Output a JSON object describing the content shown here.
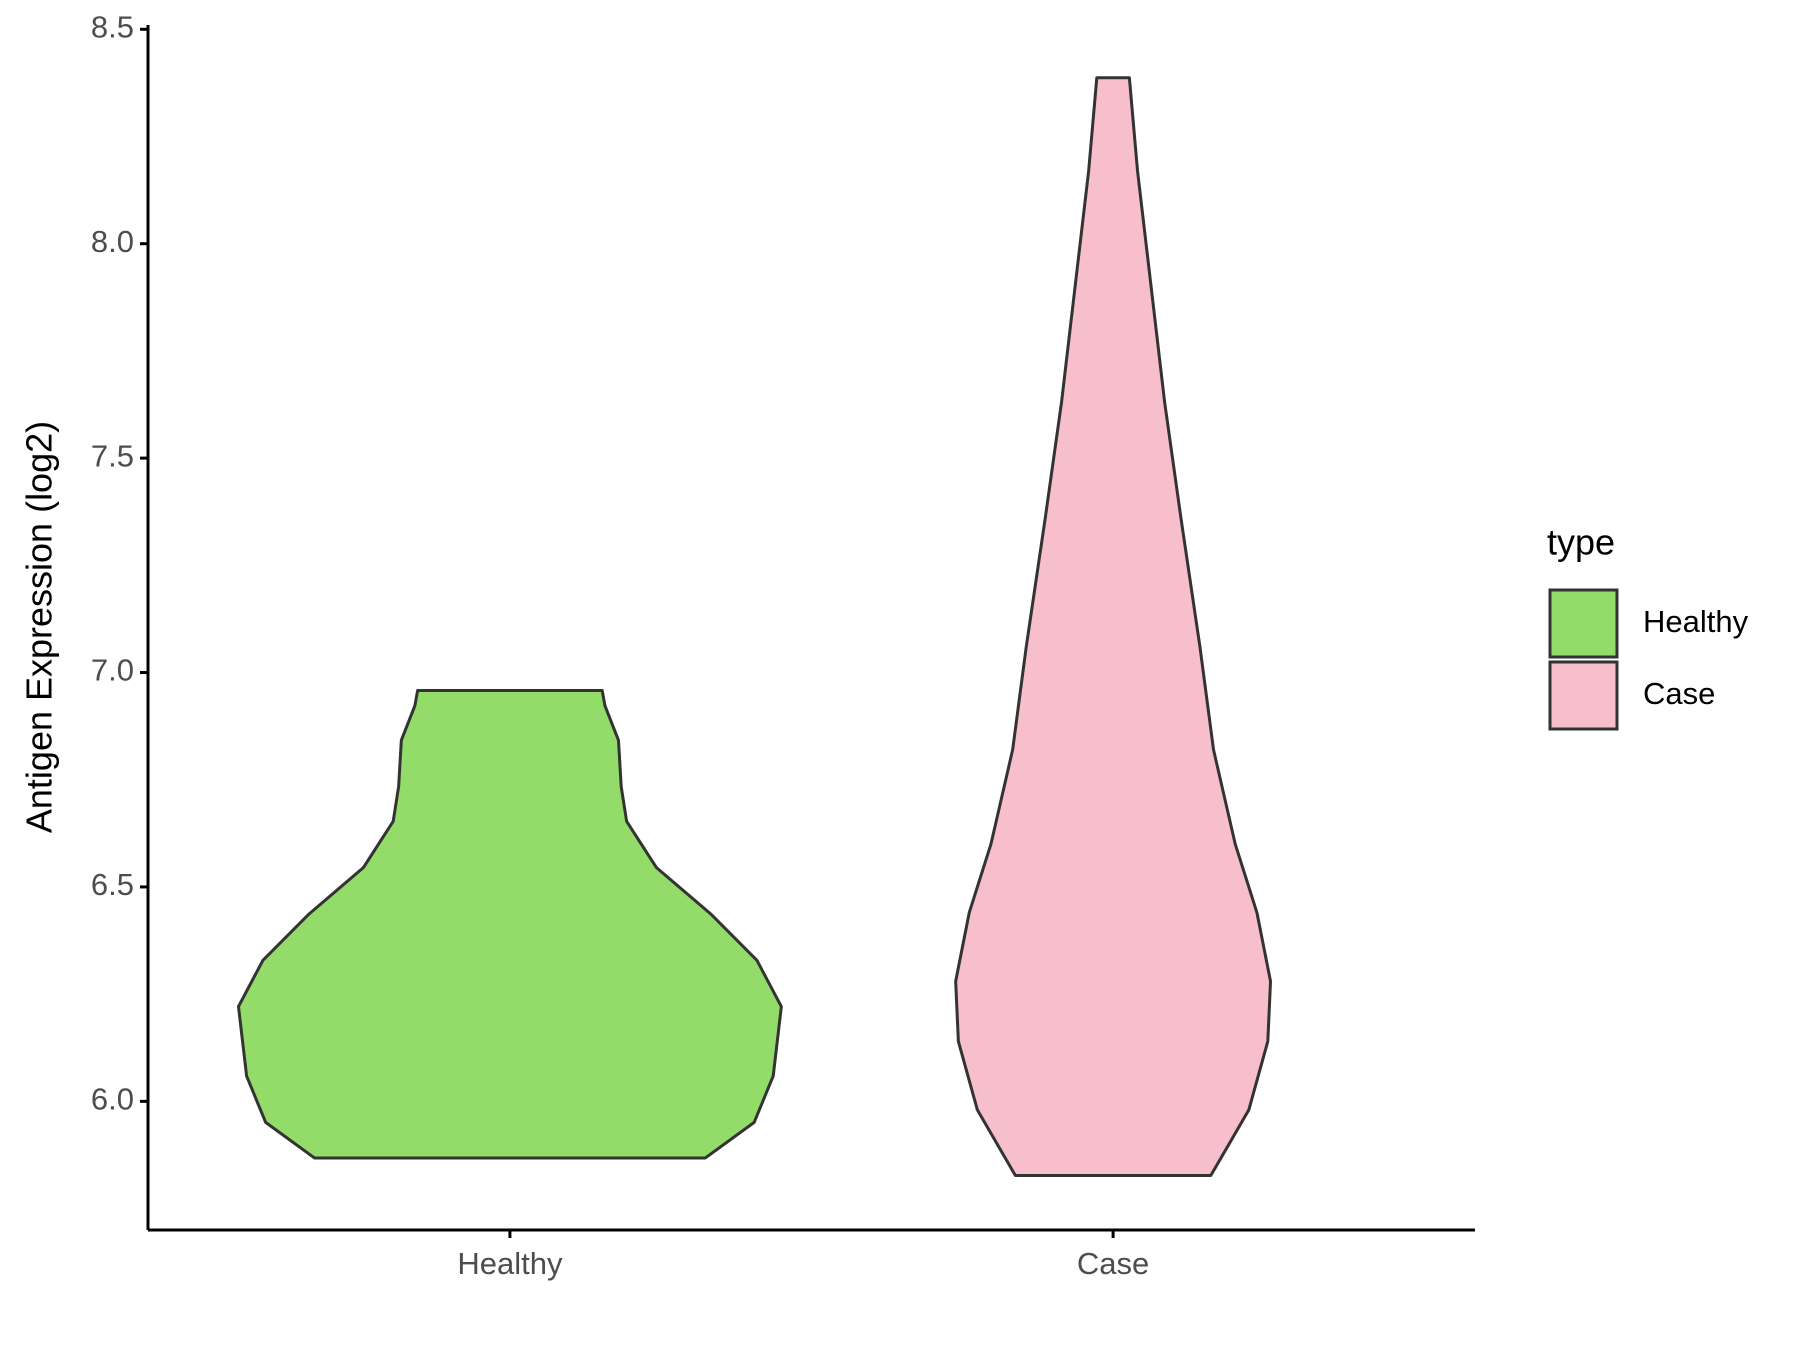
{
  "chart_data": {
    "type": "violin",
    "ylabel": "Antigen Expression (log2)",
    "categories": [
      "Healthy",
      "Case"
    ],
    "ylim": [
      5.7,
      8.51
    ],
    "yticks": [
      {
        "value": 6,
        "label": "6.0"
      },
      6.5,
      {
        "value": 7,
        "label": "7.0"
      },
      7.5,
      {
        "value": 8,
        "label": "8.0"
      },
      8.5
    ],
    "legend_title": "type",
    "legend_position": "right",
    "series": [
      {
        "name": "Healthy",
        "color": "#93dc6a",
        "y": [
          5.868,
          5.951,
          6.059,
          6.221,
          6.329,
          6.437,
          6.545,
          6.653,
          6.734,
          6.842,
          6.923,
          6.958
        ],
        "width": [
          0.72,
          0.9,
          0.97,
          1.0,
          0.91,
          0.74,
          0.54,
          0.43,
          0.41,
          0.4,
          0.35,
          0.34
        ]
      },
      {
        "name": "Case",
        "color": "#f7bfcb",
        "y": [
          5.827,
          5.98,
          6.14,
          6.28,
          6.44,
          6.6,
          6.82,
          7.06,
          7.36,
          7.63,
          7.9,
          8.17,
          8.387
        ],
        "width": [
          0.36,
          0.5,
          0.57,
          0.58,
          0.53,
          0.45,
          0.37,
          0.32,
          0.25,
          0.19,
          0.14,
          0.09,
          0.06
        ]
      }
    ]
  }
}
